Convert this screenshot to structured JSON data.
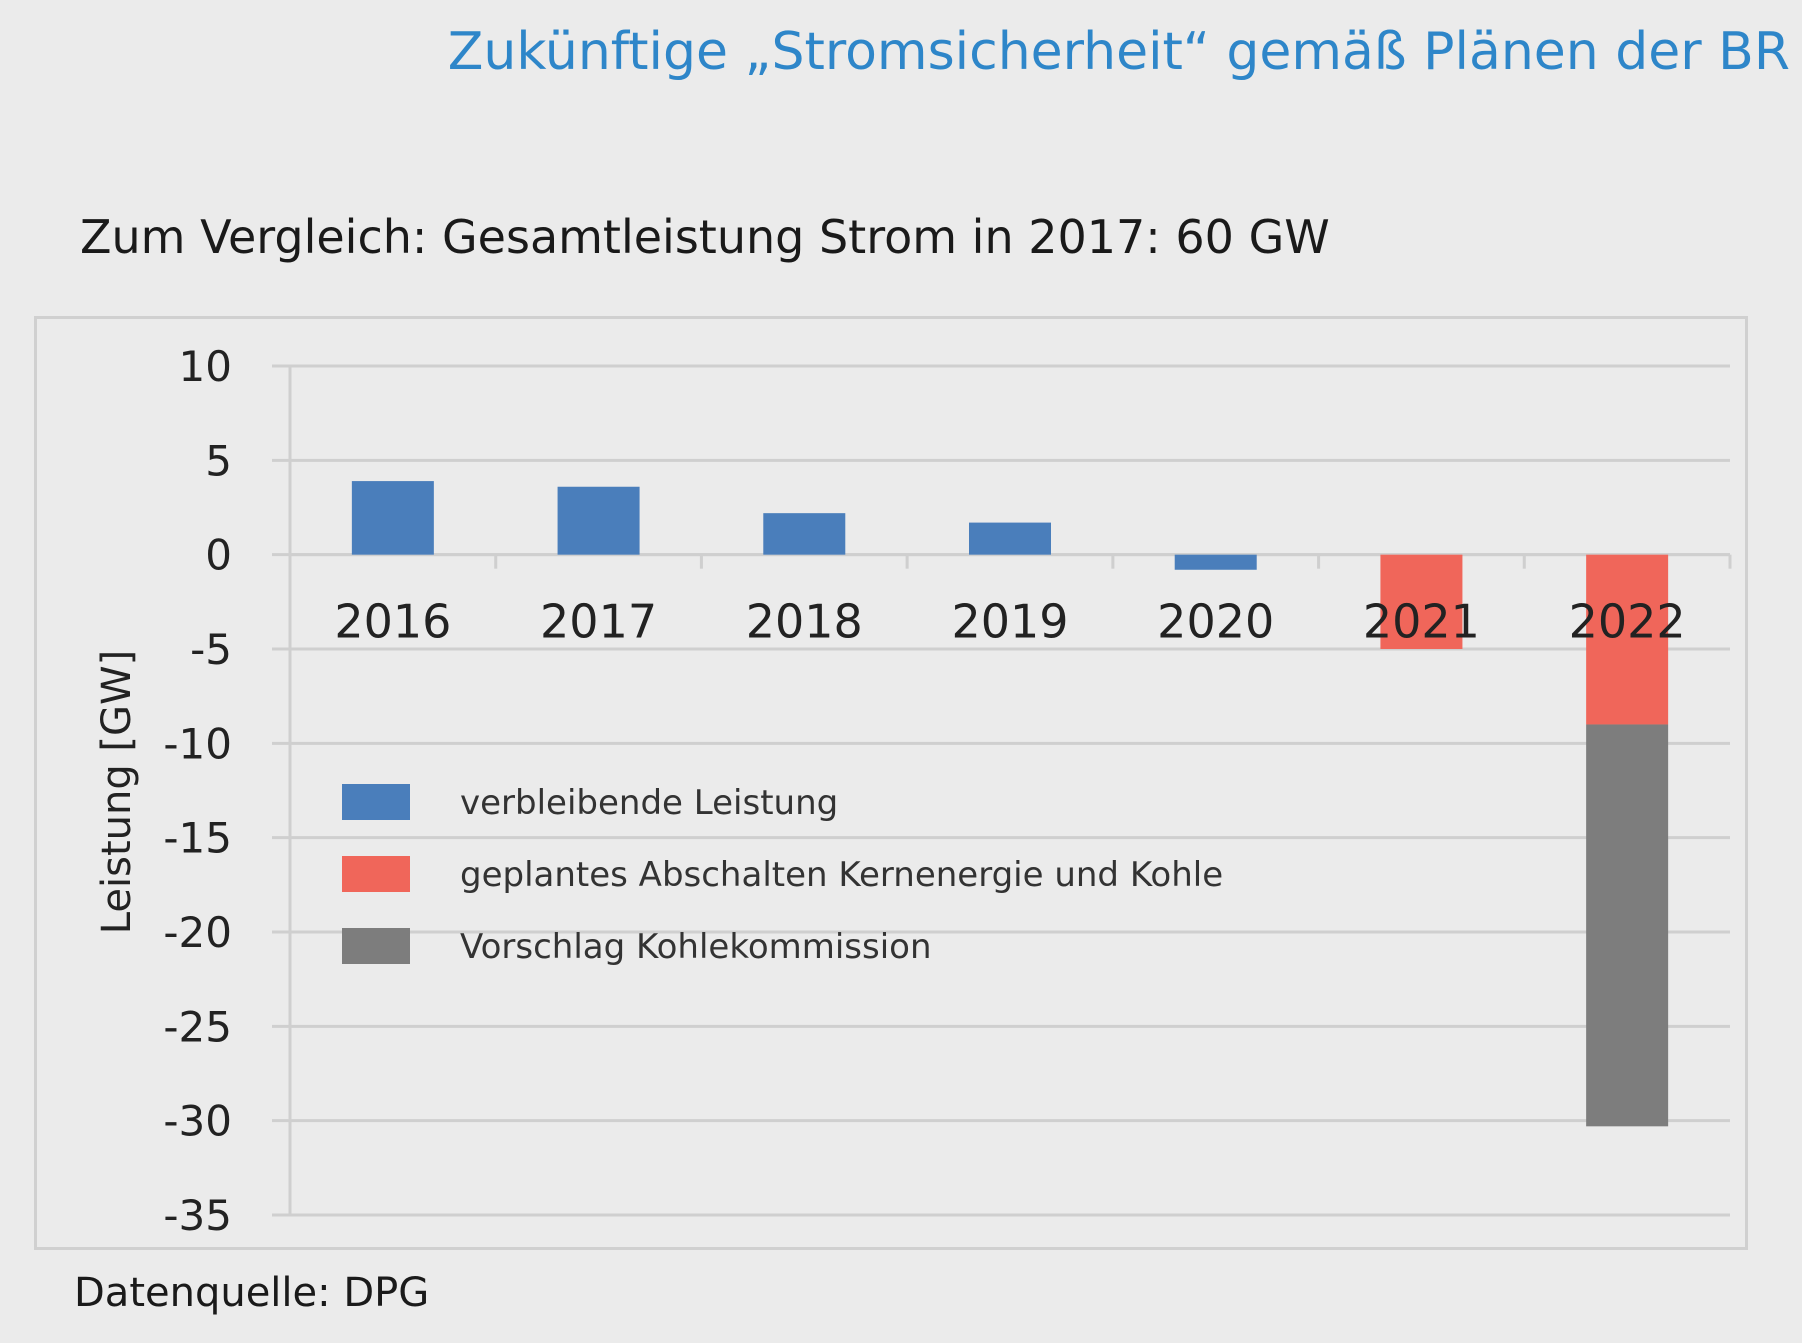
{
  "slide": {
    "title": "Zukünftige „Stromsicherheit“ gemäß Plänen der BR",
    "subtitle": "Zum Vergleich: Gesamtleistung Strom in 2017: 60 GW",
    "source": "Datenquelle: DPG"
  },
  "chart_data": {
    "type": "bar",
    "stacked": true,
    "title": "",
    "xlabel": "",
    "ylabel": "Leistung [GW]",
    "ylim": [
      -35,
      10
    ],
    "yticks": [
      10,
      5,
      0,
      -5,
      -10,
      -15,
      -20,
      -25,
      -30,
      -35
    ],
    "grid": true,
    "legend_position": "middle-left",
    "categories": [
      "2016",
      "2017",
      "2018",
      "2019",
      "2020",
      "2021",
      "2022"
    ],
    "series": [
      {
        "name": "verbleibende Leistung",
        "color": "#4a7ebb",
        "values": [
          3.9,
          3.6,
          2.2,
          1.7,
          -0.8,
          0,
          0
        ]
      },
      {
        "name": "geplantes Abschalten Kernenergie und Kohle",
        "color": "#f0665a",
        "values": [
          0,
          0,
          0,
          0,
          0,
          -5,
          -9
        ]
      },
      {
        "name": "Vorschlag Kohlekommission",
        "color": "#7d7d7d",
        "values": [
          0,
          0,
          0,
          0,
          0,
          0,
          -21.3
        ]
      }
    ]
  }
}
